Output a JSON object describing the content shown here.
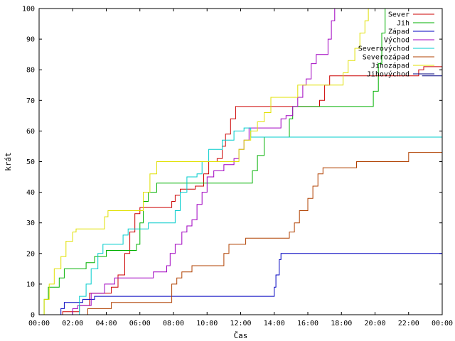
{
  "chart_data": {
    "type": "line",
    "title": "",
    "xlabel": "Čas",
    "ylabel": "krát",
    "ylim": [
      0,
      100
    ],
    "xlim": [
      "00:00",
      "24:00"
    ],
    "x_ticks": [
      "00:00",
      "02:00",
      "04:00",
      "06:00",
      "08:00",
      "10:00",
      "12:00",
      "14:00",
      "16:00",
      "18:00",
      "20:00",
      "22:00",
      "00:00"
    ],
    "y_ticks": [
      "0",
      "10",
      "20",
      "30",
      "40",
      "50",
      "60",
      "70",
      "80",
      "90",
      "100"
    ],
    "legend_position": "top-right",
    "grid": false,
    "series": [
      {
        "name": "Sever",
        "color": "#cc0000",
        "points": [
          [
            0.7,
            0
          ],
          [
            1.4,
            1
          ],
          [
            2.4,
            3
          ],
          [
            3.0,
            7
          ],
          [
            4.3,
            9
          ],
          [
            4.7,
            13
          ],
          [
            5.1,
            20
          ],
          [
            5.4,
            27
          ],
          [
            5.7,
            33
          ],
          [
            6.0,
            35
          ],
          [
            7.9,
            37
          ],
          [
            8.1,
            39
          ],
          [
            8.4,
            41
          ],
          [
            9.3,
            42
          ],
          [
            9.8,
            46
          ],
          [
            10.1,
            50
          ],
          [
            10.6,
            51
          ],
          [
            10.9,
            55
          ],
          [
            11.1,
            59
          ],
          [
            11.4,
            64
          ],
          [
            11.7,
            68
          ],
          [
            13.6,
            68
          ],
          [
            16.7,
            70
          ],
          [
            17.0,
            75
          ],
          [
            17.3,
            78
          ],
          [
            22.2,
            78
          ],
          [
            22.6,
            80
          ],
          [
            22.9,
            81
          ],
          [
            24,
            81
          ]
        ]
      },
      {
        "name": "Jih",
        "color": "#00b000",
        "points": [
          [
            0.1,
            0
          ],
          [
            0.3,
            5
          ],
          [
            0.55,
            9
          ],
          [
            1.2,
            12
          ],
          [
            1.5,
            15
          ],
          [
            2.8,
            17
          ],
          [
            3.3,
            19
          ],
          [
            4.0,
            21
          ],
          [
            5.8,
            23
          ],
          [
            6.0,
            30
          ],
          [
            6.2,
            37
          ],
          [
            6.5,
            40
          ],
          [
            7.0,
            43
          ],
          [
            12.4,
            43
          ],
          [
            12.7,
            47
          ],
          [
            13.0,
            52
          ],
          [
            13.4,
            58
          ],
          [
            14.5,
            58
          ],
          [
            14.9,
            64
          ],
          [
            15.1,
            68
          ],
          [
            19.5,
            68
          ],
          [
            19.9,
            73
          ],
          [
            20.2,
            82
          ],
          [
            20.4,
            92
          ],
          [
            20.6,
            100
          ]
        ]
      },
      {
        "name": "Západ",
        "color": "#0000c0",
        "points": [
          [
            1.0,
            0
          ],
          [
            1.3,
            2
          ],
          [
            1.5,
            4
          ],
          [
            2.0,
            4
          ],
          [
            2.6,
            5
          ],
          [
            3.1,
            5
          ],
          [
            3.3,
            6
          ],
          [
            13.8,
            6
          ],
          [
            14.0,
            9
          ],
          [
            14.1,
            13
          ],
          [
            14.3,
            18
          ],
          [
            14.4,
            20
          ],
          [
            24,
            20
          ]
        ]
      },
      {
        "name": "Východ",
        "color": "#a000c0",
        "points": [
          [
            1.5,
            0
          ],
          [
            2.0,
            2
          ],
          [
            2.3,
            3
          ],
          [
            3.1,
            7
          ],
          [
            3.9,
            10
          ],
          [
            4.5,
            12
          ],
          [
            6.5,
            12
          ],
          [
            6.8,
            14
          ],
          [
            7.3,
            14
          ],
          [
            7.6,
            16
          ],
          [
            7.8,
            20
          ],
          [
            8.1,
            23
          ],
          [
            8.5,
            27
          ],
          [
            8.8,
            29
          ],
          [
            9.1,
            31
          ],
          [
            9.4,
            36
          ],
          [
            9.7,
            40
          ],
          [
            10.0,
            45
          ],
          [
            10.4,
            47
          ],
          [
            11.0,
            49
          ],
          [
            11.6,
            51
          ],
          [
            11.9,
            54
          ],
          [
            12.2,
            57
          ],
          [
            12.5,
            61
          ],
          [
            14.1,
            61
          ],
          [
            14.4,
            64
          ],
          [
            14.7,
            65
          ],
          [
            15.1,
            68
          ],
          [
            15.4,
            71
          ],
          [
            15.7,
            75
          ],
          [
            15.9,
            77
          ],
          [
            16.2,
            82
          ],
          [
            16.5,
            85
          ],
          [
            17.0,
            85
          ],
          [
            17.2,
            90
          ],
          [
            17.4,
            96
          ],
          [
            17.6,
            100
          ]
        ]
      },
      {
        "name": "Severovýchod",
        "color": "#00cccc",
        "points": [
          [
            1.8,
            0
          ],
          [
            2.4,
            6
          ],
          [
            2.8,
            10
          ],
          [
            3.1,
            15
          ],
          [
            3.5,
            20
          ],
          [
            3.8,
            23
          ],
          [
            4.6,
            23
          ],
          [
            5.0,
            26
          ],
          [
            5.3,
            28
          ],
          [
            6.1,
            28
          ],
          [
            6.5,
            30
          ],
          [
            7.7,
            30
          ],
          [
            8.1,
            34
          ],
          [
            8.4,
            40
          ],
          [
            8.8,
            45
          ],
          [
            9.4,
            46
          ],
          [
            9.7,
            50
          ],
          [
            10.1,
            54
          ],
          [
            10.6,
            54
          ],
          [
            10.9,
            57
          ],
          [
            11.3,
            57
          ],
          [
            11.6,
            60
          ],
          [
            12.2,
            61
          ],
          [
            12.6,
            58
          ],
          [
            24,
            58
          ]
        ]
      },
      {
        "name": "Severozápad",
        "color": "#b04000",
        "points": [
          [
            2.6,
            0
          ],
          [
            2.9,
            2
          ],
          [
            4.3,
            4
          ],
          [
            7.6,
            4
          ],
          [
            7.9,
            10
          ],
          [
            8.2,
            12
          ],
          [
            8.5,
            14
          ],
          [
            9.1,
            16
          ],
          [
            10.7,
            16
          ],
          [
            11.0,
            20
          ],
          [
            11.3,
            23
          ],
          [
            12.0,
            23
          ],
          [
            12.3,
            25
          ],
          [
            14.6,
            25
          ],
          [
            14.9,
            27
          ],
          [
            15.2,
            30
          ],
          [
            15.5,
            34
          ],
          [
            16.0,
            38
          ],
          [
            16.3,
            42
          ],
          [
            16.6,
            46
          ],
          [
            16.9,
            48
          ],
          [
            18.5,
            48
          ],
          [
            18.9,
            50
          ],
          [
            21.8,
            50
          ],
          [
            22.0,
            53
          ],
          [
            24,
            53
          ]
        ]
      },
      {
        "name": "Jihozápad",
        "color": "#e0e000",
        "points": [
          [
            0.05,
            0
          ],
          [
            0.3,
            5
          ],
          [
            0.6,
            10
          ],
          [
            0.9,
            15
          ],
          [
            1.3,
            19
          ],
          [
            1.6,
            24
          ],
          [
            2.0,
            27
          ],
          [
            2.2,
            28
          ],
          [
            3.6,
            28
          ],
          [
            3.9,
            32
          ],
          [
            4.1,
            34
          ],
          [
            5.8,
            34
          ],
          [
            6.2,
            40
          ],
          [
            6.6,
            46
          ],
          [
            7.0,
            50
          ],
          [
            9.8,
            50
          ],
          [
            10.1,
            50
          ],
          [
            11.6,
            50
          ],
          [
            11.9,
            54
          ],
          [
            12.2,
            57
          ],
          [
            12.6,
            60
          ],
          [
            13.0,
            63
          ],
          [
            13.4,
            66
          ],
          [
            13.8,
            71
          ],
          [
            15.1,
            71
          ],
          [
            15.4,
            75
          ],
          [
            17.8,
            75
          ],
          [
            18.1,
            79
          ],
          [
            18.4,
            83
          ],
          [
            18.8,
            87
          ],
          [
            19.1,
            92
          ],
          [
            19.4,
            96
          ],
          [
            19.6,
            100
          ]
        ]
      },
      {
        "name": "Jihovýchod",
        "color": "#000080",
        "points": [
          [
            22.8,
            78
          ],
          [
            24,
            78
          ]
        ]
      }
    ]
  }
}
